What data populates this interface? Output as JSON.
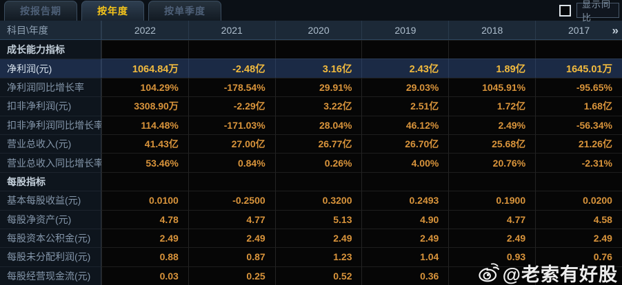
{
  "tabs": [
    {
      "label": "按报告期",
      "active": false
    },
    {
      "label": "按年度",
      "active": true
    },
    {
      "label": "按单季度",
      "active": false
    }
  ],
  "yoy_toggle": {
    "label": "显示同比",
    "checked": false
  },
  "table": {
    "corner_label": "科目\\年度",
    "years": [
      "2022",
      "2021",
      "2020",
      "2019",
      "2018",
      "2017"
    ],
    "more_icon": "»",
    "rows": [
      {
        "label": "成长能力指标",
        "type": "section",
        "highlight": false,
        "values": [
          "",
          "",
          "",
          "",
          "",
          ""
        ]
      },
      {
        "label": "净利润(元)",
        "type": "data",
        "highlight": true,
        "values": [
          "1064.84万",
          "-2.48亿",
          "3.16亿",
          "2.43亿",
          "1.89亿",
          "1645.01万"
        ]
      },
      {
        "label": "净利润同比增长率",
        "type": "data",
        "highlight": false,
        "values": [
          "104.29%",
          "-178.54%",
          "29.91%",
          "29.03%",
          "1045.91%",
          "-95.65%"
        ]
      },
      {
        "label": "扣非净利润(元)",
        "type": "data",
        "highlight": false,
        "values": [
          "3308.90万",
          "-2.29亿",
          "3.22亿",
          "2.51亿",
          "1.72亿",
          "1.68亿"
        ]
      },
      {
        "label": "扣非净利润同比增长率",
        "type": "data",
        "highlight": false,
        "values": [
          "114.48%",
          "-171.03%",
          "28.04%",
          "46.12%",
          "2.49%",
          "-56.34%"
        ]
      },
      {
        "label": "营业总收入(元)",
        "type": "data",
        "highlight": false,
        "values": [
          "41.43亿",
          "27.00亿",
          "26.77亿",
          "26.70亿",
          "25.68亿",
          "21.26亿"
        ]
      },
      {
        "label": "营业总收入同比增长率",
        "type": "data",
        "highlight": false,
        "values": [
          "53.46%",
          "0.84%",
          "0.26%",
          "4.00%",
          "20.76%",
          "-2.31%"
        ]
      },
      {
        "label": "每股指标",
        "type": "section",
        "highlight": false,
        "values": [
          "",
          "",
          "",
          "",
          "",
          ""
        ]
      },
      {
        "label": "基本每股收益(元)",
        "type": "data",
        "highlight": false,
        "values": [
          "0.0100",
          "-0.2500",
          "0.3200",
          "0.2493",
          "0.1900",
          "0.0200"
        ]
      },
      {
        "label": "每股净资产(元)",
        "type": "data",
        "highlight": false,
        "values": [
          "4.78",
          "4.77",
          "5.13",
          "4.90",
          "4.77",
          "4.58"
        ]
      },
      {
        "label": "每股资本公积金(元)",
        "type": "data",
        "highlight": false,
        "values": [
          "2.49",
          "2.49",
          "2.49",
          "2.49",
          "2.49",
          "2.49"
        ]
      },
      {
        "label": "每股未分配利润(元)",
        "type": "data",
        "highlight": false,
        "values": [
          "0.88",
          "0.87",
          "1.23",
          "1.04",
          "0.93",
          "0.76"
        ]
      },
      {
        "label": "每股经营现金流(元)",
        "type": "data",
        "highlight": false,
        "values": [
          "0.03",
          "0.25",
          "0.52",
          "0.36",
          "",
          ""
        ]
      }
    ]
  },
  "watermark": {
    "text": "@老索有好股"
  },
  "colors": {
    "accent_yellow": "#f6c51b",
    "value_orange": "#d9943b",
    "highlight_gold": "#f1ba3e",
    "highlight_row_bg": "#1b2a45",
    "header_bg": "#1c2937",
    "label_text": "#8496aa"
  }
}
